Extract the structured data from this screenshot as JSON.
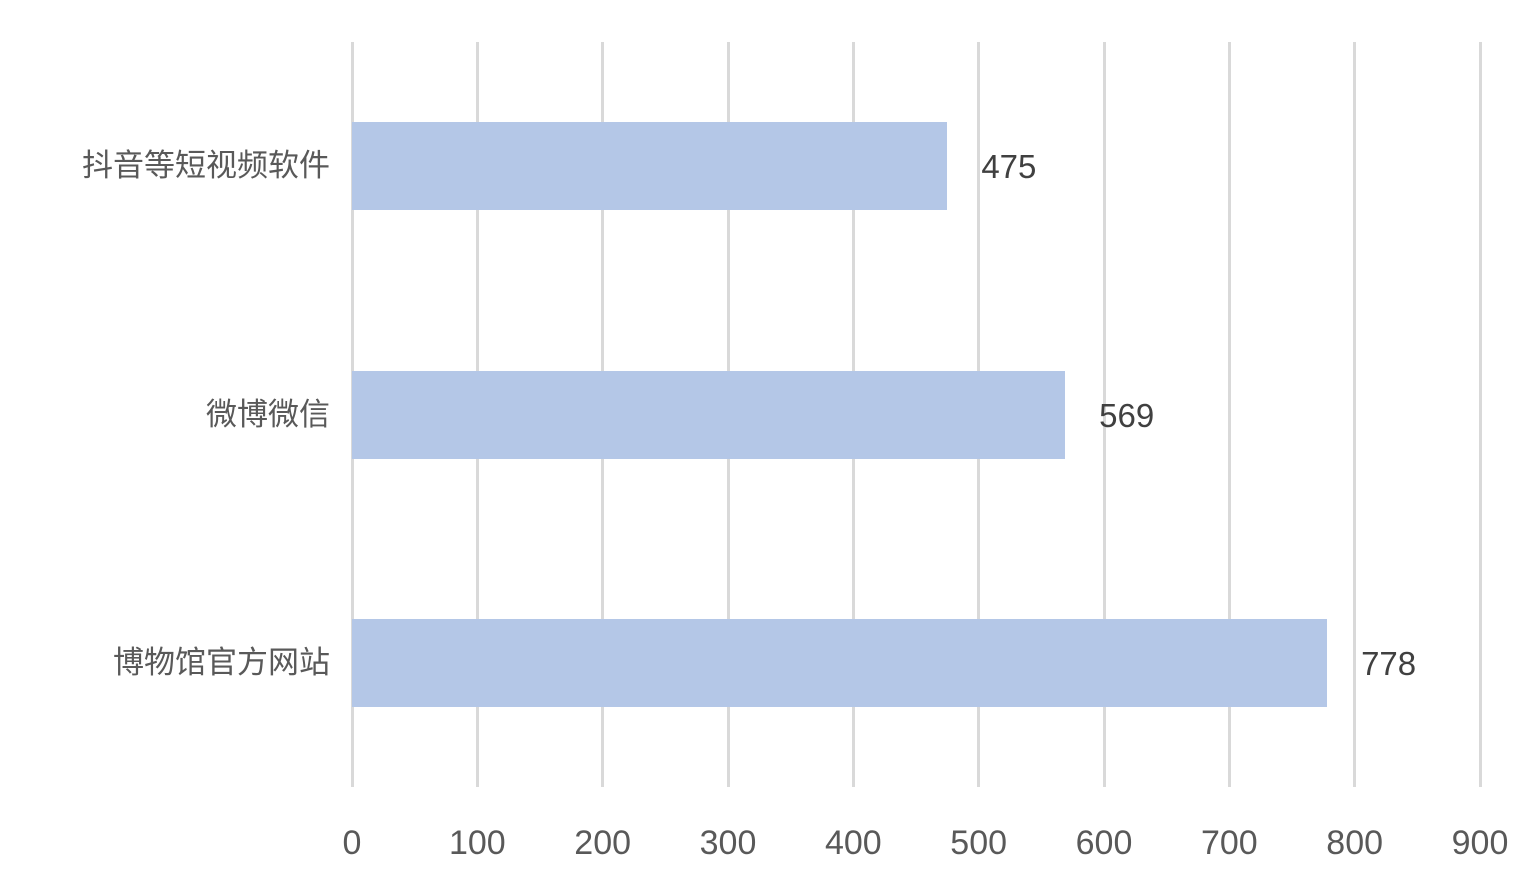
{
  "chart_data": {
    "type": "bar",
    "orientation": "horizontal",
    "title": "",
    "xlabel": "",
    "ylabel": "",
    "categories": [
      "抖音等短视频软件",
      "微博微信",
      "博物馆官方网站"
    ],
    "values": [
      475,
      569,
      778
    ],
    "value_labels": [
      "475",
      "569",
      "778"
    ],
    "xlim": [
      0,
      900
    ],
    "x_ticks": [
      0,
      100,
      200,
      300,
      400,
      500,
      600,
      700,
      800,
      900
    ],
    "x_tick_labels": [
      "0",
      "100",
      "200",
      "300",
      "400",
      "500",
      "600",
      "700",
      "800",
      "900"
    ],
    "grid": true,
    "legend": false,
    "colors": {
      "bar_fill": "#b4c7e7",
      "gridline": "#d9d9d9",
      "category_text": "#595959",
      "tick_text": "#595959",
      "value_text": "#404040",
      "background": "#ffffff"
    }
  }
}
